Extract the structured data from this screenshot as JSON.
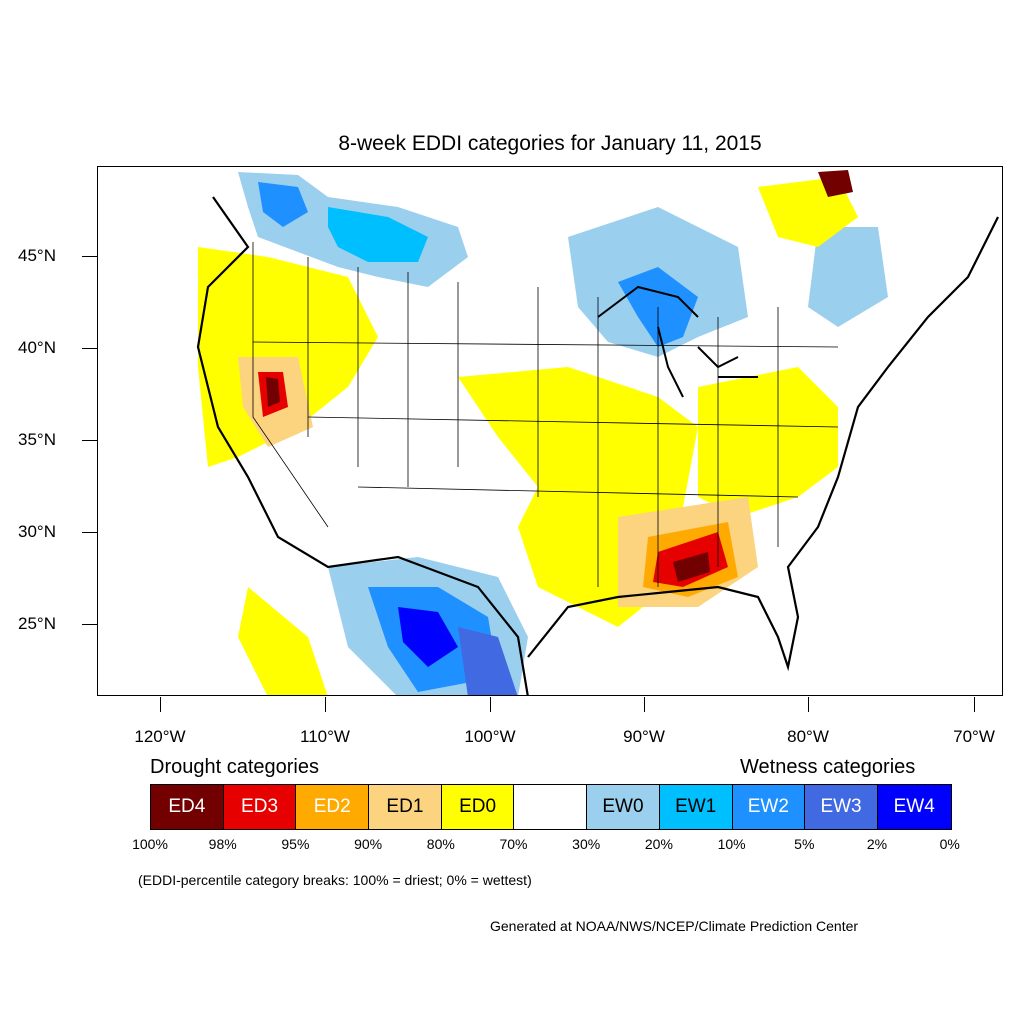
{
  "title": "8-week EDDI categories for January 11, 2015",
  "map": {
    "lat_labels": [
      "45°N",
      "40°N",
      "35°N",
      "30°N",
      "25°N"
    ],
    "lon_labels": [
      "120°W",
      "110°W",
      "100°W",
      "90°W",
      "80°W",
      "70°W"
    ]
  },
  "legend": {
    "drought_heading": "Drought categories",
    "wetness_heading": "Wetness categories",
    "categories": [
      {
        "label": "ED4",
        "color": "#730000",
        "text_color": "#ffffff"
      },
      {
        "label": "ED3",
        "color": "#e60000",
        "text_color": "#ffffff"
      },
      {
        "label": "ED2",
        "color": "#ffaa00",
        "text_color": "#ffffff"
      },
      {
        "label": "ED1",
        "color": "#fcd37f",
        "text_color": "#000000"
      },
      {
        "label": "ED0",
        "color": "#ffff00",
        "text_color": "#000000"
      },
      {
        "label": "",
        "color": "#ffffff",
        "text_color": "#000000"
      },
      {
        "label": "EW0",
        "color": "#9bcfee",
        "text_color": "#000000"
      },
      {
        "label": "EW1",
        "color": "#00bfff",
        "text_color": "#000000"
      },
      {
        "label": "EW2",
        "color": "#1e90ff",
        "text_color": "#ffffff"
      },
      {
        "label": "EW3",
        "color": "#4169e1",
        "text_color": "#ffffff"
      },
      {
        "label": "EW4",
        "color": "#0000ff",
        "text_color": "#ffffff"
      }
    ],
    "breaks": [
      "100%",
      "98%",
      "95%",
      "90%",
      "80%",
      "70%",
      "30%",
      "20%",
      "10%",
      "5%",
      "2%",
      "0%"
    ]
  },
  "note": "(EDDI-percentile category breaks: 100% = driest; 0% = wettest)",
  "credit": "Generated at NOAA/NWS/NCEP/Climate Prediction Center"
}
